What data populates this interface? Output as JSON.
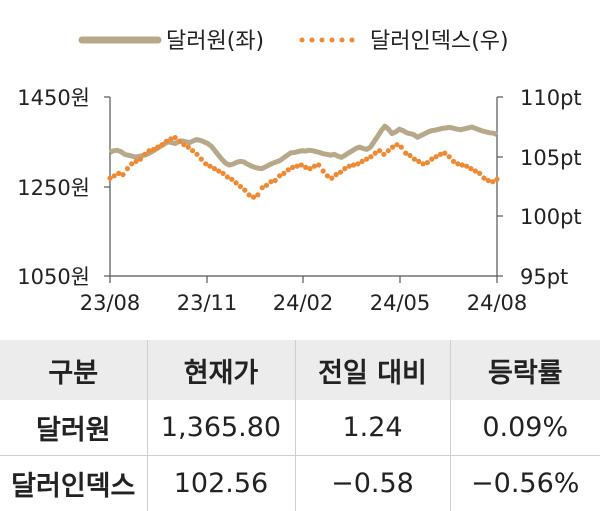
{
  "colors": {
    "usdkrw": "#b7a88a",
    "dxy": "#ee8a33",
    "axis": "#555555",
    "header_bg": "#ececec"
  },
  "chart_data": {
    "type": "line",
    "legend": {
      "placement": "top",
      "entries": [
        "달러원(좌)",
        "달러인덱스(우)"
      ]
    },
    "x_ticks": [
      "23/08",
      "23/11",
      "24/02",
      "24/05",
      "24/08"
    ],
    "y_left": {
      "ticks": [
        "1450원",
        "1250원",
        "1050원"
      ],
      "range": [
        1050,
        1450
      ]
    },
    "y_right": {
      "ticks": [
        "110pt",
        "105pt",
        "100pt",
        "95pt"
      ],
      "range": [
        95,
        110
      ]
    },
    "grid": false,
    "series": [
      {
        "name": "달러원(좌)",
        "axis": "left",
        "style": "solid-thick",
        "values": [
          1326,
          1330,
          1331,
          1328,
          1322,
          1320,
          1318,
          1316,
          1317,
          1319,
          1321,
          1325,
          1330,
          1335,
          1340,
          1345,
          1350,
          1348,
          1346,
          1350,
          1352,
          1350,
          1348,
          1352,
          1355,
          1353,
          1350,
          1346,
          1340,
          1330,
          1320,
          1310,
          1302,
          1298,
          1300,
          1304,
          1306,
          1305,
          1300,
          1296,
          1293,
          1291,
          1290,
          1294,
          1298,
          1302,
          1305,
          1308,
          1314,
          1320,
          1325,
          1326,
          1328,
          1330,
          1329,
          1331,
          1330,
          1328,
          1326,
          1323,
          1322,
          1320,
          1322,
          1318,
          1315,
          1320,
          1325,
          1330,
          1335,
          1338,
          1335,
          1333,
          1338,
          1350,
          1362,
          1375,
          1385,
          1378,
          1368,
          1372,
          1378,
          1375,
          1370,
          1368,
          1366,
          1360,
          1364,
          1368,
          1372,
          1375,
          1376,
          1378,
          1380,
          1381,
          1382,
          1380,
          1378,
          1377,
          1379,
          1381,
          1383,
          1380,
          1377,
          1374,
          1372,
          1370,
          1369,
          1366
        ]
      },
      {
        "name": "달러인덱스(우)",
        "axis": "right",
        "style": "dotted",
        "values": [
          103.2,
          103.4,
          103.6,
          103.5,
          104.0,
          104.4,
          104.6,
          104.8,
          105.2,
          105.5,
          105.6,
          105.8,
          106.0,
          106.3,
          106.5,
          106.6,
          106.3,
          106.0,
          105.8,
          105.5,
          105.2,
          104.8,
          104.4,
          104.2,
          104.0,
          103.8,
          103.6,
          103.3,
          103.1,
          102.8,
          102.5,
          102.2,
          101.8,
          101.6,
          101.8,
          102.4,
          102.6,
          102.9,
          103.0,
          103.4,
          103.6,
          103.9,
          104.1,
          104.2,
          104.3,
          104.1,
          104.0,
          104.2,
          104.3,
          103.8,
          103.4,
          103.2,
          103.5,
          103.7,
          104.0,
          104.2,
          104.3,
          104.4,
          104.6,
          104.8,
          105.0,
          105.3,
          105.5,
          105.2,
          105.5,
          105.8,
          106.0,
          105.8,
          105.3,
          105.1,
          104.8,
          104.6,
          104.4,
          104.5,
          104.8,
          105.0,
          105.2,
          105.3,
          105.0,
          104.6,
          104.4,
          104.3,
          104.2,
          104.0,
          103.8,
          103.6,
          103.2,
          103.0,
          102.9,
          103.1
        ]
      }
    ]
  },
  "table": {
    "headers": [
      "구분",
      "현재가",
      "전일 대비",
      "등락률"
    ],
    "rows": [
      [
        "달러원",
        "1,365.80",
        "1.24",
        "0.09%"
      ],
      [
        "달러인덱스",
        "102.56",
        "−0.58",
        "−0.56%"
      ]
    ]
  }
}
